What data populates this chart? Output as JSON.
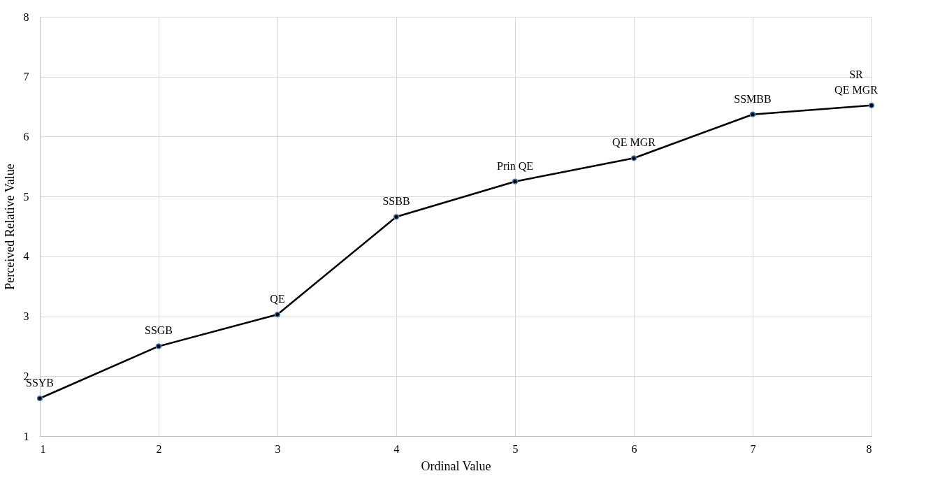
{
  "chart_data": {
    "type": "line",
    "xlabel": "Ordinal Value",
    "ylabel": "Perceived Relative Value",
    "x": [
      1,
      2,
      3,
      4,
      5,
      6,
      7,
      8
    ],
    "series": [
      {
        "color": "#000000",
        "values": [
          1.63,
          2.5,
          3.03,
          4.66,
          5.25,
          5.64,
          6.37,
          6.52
        ]
      }
    ],
    "xlim": [
      1,
      8
    ],
    "xticks": [
      1,
      2,
      3,
      4,
      5,
      6,
      7,
      8
    ],
    "ylim": [
      1,
      8
    ],
    "yticks": [
      1,
      2,
      3,
      4,
      5,
      6,
      7,
      8
    ],
    "grid": true,
    "marker": "circle",
    "line_style": "solid",
    "annotations": [
      {
        "text": "SSYB",
        "x": 1,
        "y": 1.63
      },
      {
        "text": "SSGB",
        "x": 2,
        "y": 2.5
      },
      {
        "text": "QE",
        "x": 3,
        "y": 3.03
      },
      {
        "text": "SSBB",
        "x": 4,
        "y": 4.66
      },
      {
        "text": "Prin QE",
        "x": 5,
        "y": 5.25
      },
      {
        "text": "QE MGR",
        "x": 6,
        "y": 5.64
      },
      {
        "text": "SSMBB",
        "x": 7,
        "y": 6.37
      },
      {
        "text": "SR\nQE MGR",
        "x": 8,
        "y": 6.52
      }
    ]
  }
}
